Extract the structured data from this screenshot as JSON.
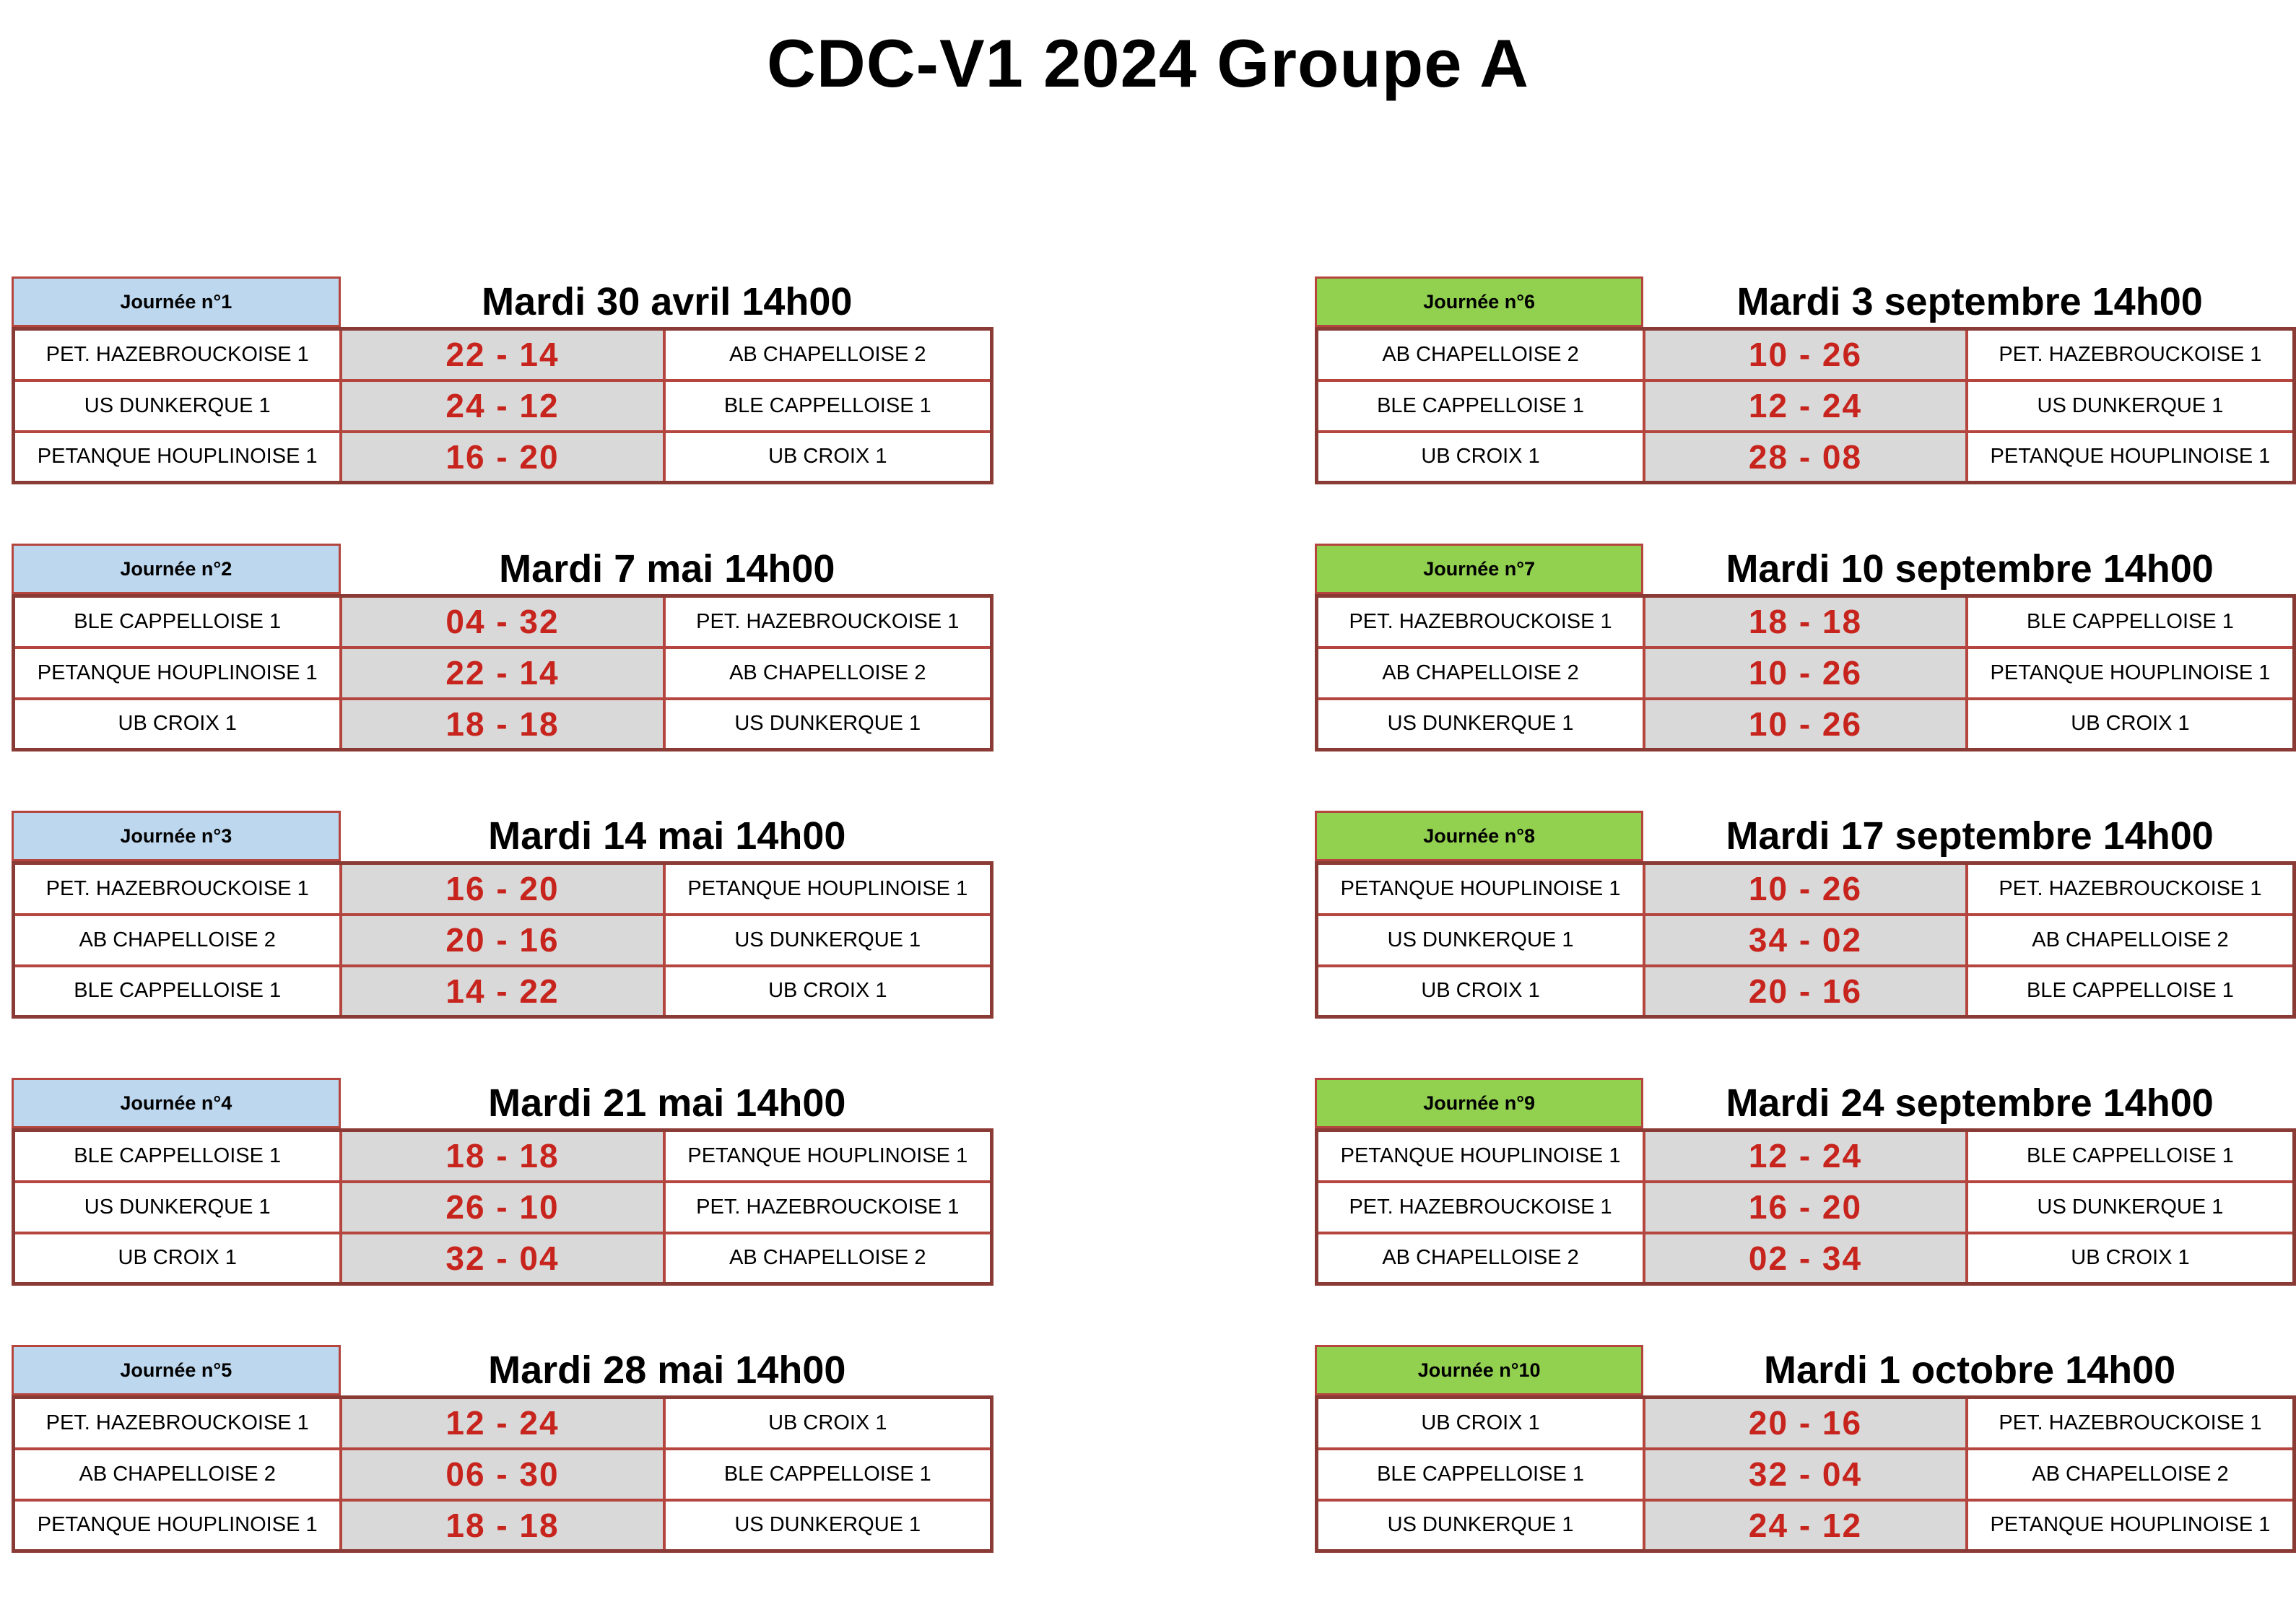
{
  "page_title": "CDC-V1 2024 Groupe A",
  "colors": {
    "header_left": "#bdd7ee",
    "header_right": "#92d050",
    "score_bg": "#d9d9d9",
    "score_text": "#c7241d",
    "border_inner": "#b4463f",
    "border_outer": "#8a3b35"
  },
  "blocks": [
    {
      "label": "Journée n°1",
      "date": "Mardi 30 avril 14h00",
      "header_color": "blue",
      "matches": [
        {
          "home": "PET. HAZEBROUCKOISE 1",
          "score": "22 - 14",
          "away": "AB CHAPELLOISE 2"
        },
        {
          "home": "US DUNKERQUE 1",
          "score": "24 - 12",
          "away": "BLE CAPPELLOISE 1"
        },
        {
          "home": "PETANQUE HOUPLINOISE 1",
          "score": "16 - 20",
          "away": "UB CROIX 1"
        }
      ]
    },
    {
      "label": "Journée n°2",
      "date": "Mardi 7 mai 14h00",
      "header_color": "blue",
      "matches": [
        {
          "home": "BLE CAPPELLOISE 1",
          "score": "04 - 32",
          "away": "PET. HAZEBROUCKOISE 1"
        },
        {
          "home": "PETANQUE HOUPLINOISE 1",
          "score": "22 - 14",
          "away": "AB CHAPELLOISE 2"
        },
        {
          "home": "UB CROIX 1",
          "score": "18 - 18",
          "away": "US DUNKERQUE 1"
        }
      ]
    },
    {
      "label": "Journée n°3",
      "date": "Mardi 14 mai 14h00",
      "header_color": "blue",
      "matches": [
        {
          "home": "PET. HAZEBROUCKOISE 1",
          "score": "16 - 20",
          "away": "PETANQUE HOUPLINOISE 1"
        },
        {
          "home": "AB CHAPELLOISE 2",
          "score": "20 - 16",
          "away": "US DUNKERQUE 1"
        },
        {
          "home": "BLE CAPPELLOISE 1",
          "score": "14 - 22",
          "away": "UB CROIX 1"
        }
      ]
    },
    {
      "label": "Journée n°4",
      "date": "Mardi 21 mai 14h00",
      "header_color": "blue",
      "matches": [
        {
          "home": "BLE CAPPELLOISE 1",
          "score": "18 - 18",
          "away": "PETANQUE HOUPLINOISE 1"
        },
        {
          "home": "US DUNKERQUE 1",
          "score": "26 - 10",
          "away": "PET. HAZEBROUCKOISE 1"
        },
        {
          "home": "UB CROIX 1",
          "score": "32 - 04",
          "away": "AB CHAPELLOISE 2"
        }
      ]
    },
    {
      "label": "Journée n°5",
      "date": "Mardi 28 mai 14h00",
      "header_color": "blue",
      "matches": [
        {
          "home": "PET. HAZEBROUCKOISE 1",
          "score": "12 - 24",
          "away": "UB CROIX 1"
        },
        {
          "home": "AB CHAPELLOISE 2",
          "score": "06 - 30",
          "away": "BLE CAPPELLOISE 1"
        },
        {
          "home": "PETANQUE HOUPLINOISE 1",
          "score": "18 - 18",
          "away": "US DUNKERQUE 1"
        }
      ]
    },
    {
      "label": "Journée n°6",
      "date": "Mardi 3 septembre 14h00",
      "header_color": "green",
      "matches": [
        {
          "home": "AB CHAPELLOISE 2",
          "score": "10 - 26",
          "away": "PET. HAZEBROUCKOISE 1"
        },
        {
          "home": "BLE CAPPELLOISE 1",
          "score": "12 - 24",
          "away": "US DUNKERQUE 1"
        },
        {
          "home": "UB CROIX 1",
          "score": "28 - 08",
          "away": "PETANQUE HOUPLINOISE 1"
        }
      ]
    },
    {
      "label": "Journée n°7",
      "date": "Mardi 10 septembre 14h00",
      "header_color": "green",
      "matches": [
        {
          "home": "PET. HAZEBROUCKOISE 1",
          "score": "18 - 18",
          "away": "BLE CAPPELLOISE 1"
        },
        {
          "home": "AB CHAPELLOISE 2",
          "score": "10 - 26",
          "away": "PETANQUE HOUPLINOISE 1"
        },
        {
          "home": "US DUNKERQUE 1",
          "score": "10 - 26",
          "away": "UB CROIX 1"
        }
      ]
    },
    {
      "label": "Journée n°8",
      "date": "Mardi 17 septembre 14h00",
      "header_color": "green",
      "matches": [
        {
          "home": "PETANQUE HOUPLINOISE 1",
          "score": "10 - 26",
          "away": "PET. HAZEBROUCKOISE 1"
        },
        {
          "home": "US DUNKERQUE 1",
          "score": "34 - 02",
          "away": "AB CHAPELLOISE 2"
        },
        {
          "home": "UB CROIX 1",
          "score": "20 - 16",
          "away": "BLE CAPPELLOISE 1"
        }
      ]
    },
    {
      "label": "Journée n°9",
      "date": "Mardi 24 septembre 14h00",
      "header_color": "green",
      "matches": [
        {
          "home": "PETANQUE HOUPLINOISE 1",
          "score": "12 - 24",
          "away": "BLE CAPPELLOISE 1"
        },
        {
          "home": "PET. HAZEBROUCKOISE 1",
          "score": "16 - 20",
          "away": "US DUNKERQUE 1"
        },
        {
          "home": "AB CHAPELLOISE 2",
          "score": "02 - 34",
          "away": "UB CROIX 1"
        }
      ]
    },
    {
      "label": "Journée n°10",
      "date": "Mardi 1 octobre 14h00",
      "header_color": "green",
      "matches": [
        {
          "home": "UB CROIX 1",
          "score": "20 - 16",
          "away": "PET. HAZEBROUCKOISE 1"
        },
        {
          "home": "BLE CAPPELLOISE 1",
          "score": "32 - 04",
          "away": "AB CHAPELLOISE 2"
        },
        {
          "home": "US DUNKERQUE 1",
          "score": "24 - 12",
          "away": "PETANQUE HOUPLINOISE 1"
        }
      ]
    }
  ]
}
